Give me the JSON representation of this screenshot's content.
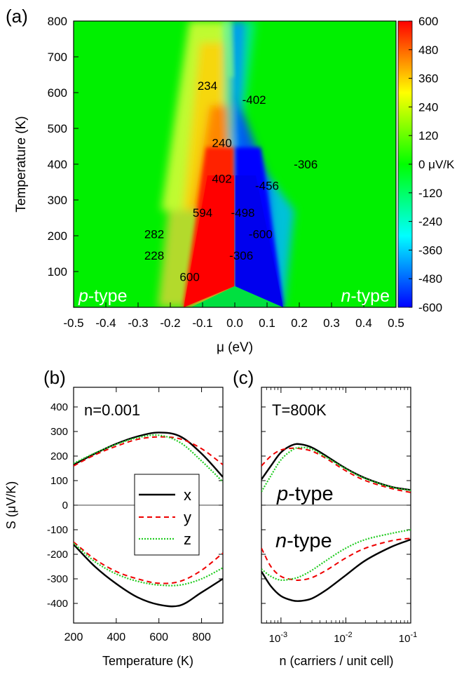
{
  "chart_data": [
    {
      "panel": "(a)",
      "type": "heatmap",
      "xlabel": "μ (eV)",
      "ylabel": "Temperature (K)",
      "xlim": [
        -0.5,
        0.5
      ],
      "ylim": [
        0,
        800
      ],
      "xticks": [
        "-0.5",
        "-0.4",
        "-0.3",
        "-0.2",
        "-0.1",
        "0.0",
        "0.1",
        "0.2",
        "0.3",
        "0.4",
        "0.5"
      ],
      "yticks": [
        "100",
        "200",
        "300",
        "400",
        "500",
        "600",
        "700",
        "800"
      ],
      "colorbar": {
        "min": -600,
        "max": 600,
        "ticks": [
          "600",
          "480",
          "360",
          "240",
          "120",
          "0 μV/K",
          "-120",
          "-240",
          "-360",
          "-480",
          "-600"
        ],
        "colors": [
          "#0000ff",
          "#0080ff",
          "#00ffff",
          "#00ff80",
          "#00ff00",
          "#80ff00",
          "#ffff00",
          "#ff8000",
          "#ff0000"
        ]
      },
      "region_labels": [
        {
          "prefix": "p",
          "suffix": "-type"
        },
        {
          "prefix": "n",
          "suffix": "-type"
        }
      ],
      "annotations": [
        {
          "text": "234",
          "mu": -0.085,
          "T": 620
        },
        {
          "text": "-402",
          "mu": 0.06,
          "T": 580
        },
        {
          "text": "240",
          "mu": -0.04,
          "T": 460
        },
        {
          "text": "402",
          "mu": -0.04,
          "T": 360
        },
        {
          "text": "-306",
          "mu": 0.22,
          "T": 400
        },
        {
          "text": "-456",
          "mu": 0.1,
          "T": 340
        },
        {
          "text": "594",
          "mu": -0.1,
          "T": 265
        },
        {
          "text": "-498",
          "mu": 0.025,
          "T": 265
        },
        {
          "text": "282",
          "mu": -0.25,
          "T": 205
        },
        {
          "text": "-600",
          "mu": 0.08,
          "T": 205
        },
        {
          "text": "228",
          "mu": -0.25,
          "T": 145
        },
        {
          "text": "-306",
          "mu": 0.02,
          "T": 145
        },
        {
          "text": "600",
          "mu": -0.14,
          "T": 85
        }
      ]
    },
    {
      "panel": "(b)",
      "type": "line",
      "annotation": "n=0.001",
      "xlabel": "Temperature (K)",
      "ylabel": "S (μV/K)",
      "xlim": [
        200,
        900
      ],
      "ylim": [
        -480,
        480
      ],
      "xticks": [
        "200",
        "400",
        "600",
        "800"
      ],
      "yticks": [
        "400",
        "300",
        "200",
        "100",
        "0",
        "-100",
        "-200",
        "-300",
        "-400"
      ],
      "x": [
        200,
        300,
        400,
        500,
        600,
        700,
        800,
        900
      ],
      "series": [
        {
          "name": "x",
          "color": "#000000",
          "dash": "",
          "p": [
            165,
            210,
            250,
            280,
            296,
            280,
            210,
            115
          ],
          "n": [
            -160,
            -250,
            -320,
            -375,
            -405,
            -408,
            -355,
            -300
          ]
        },
        {
          "name": "y",
          "color": "#ee0000",
          "dash": "7,5",
          "p": [
            160,
            205,
            240,
            268,
            278,
            270,
            230,
            165
          ],
          "n": [
            -150,
            -220,
            -270,
            -300,
            -318,
            -310,
            -265,
            -195
          ]
        },
        {
          "name": "z",
          "color": "#22cc22",
          "dash": "2,2",
          "p": [
            170,
            212,
            248,
            275,
            285,
            255,
            180,
            95
          ],
          "n": [
            -155,
            -230,
            -280,
            -310,
            -325,
            -325,
            -300,
            -255
          ]
        }
      ]
    },
    {
      "panel": "(c)",
      "type": "line",
      "annotation": "T=800K",
      "region_labels": [
        {
          "prefix": "p",
          "suffix": "-type"
        },
        {
          "prefix": "n",
          "suffix": "-type"
        }
      ],
      "xlabel": "n (carriers / unit cell)",
      "ylabel": "",
      "xscale": "log",
      "xlim": [
        0.0005,
        0.1
      ],
      "ylim": [
        -480,
        480
      ],
      "xticks": [
        {
          "base": "10",
          "exp": "-3"
        },
        {
          "base": "10",
          "exp": "-2"
        },
        {
          "base": "10",
          "exp": "-1"
        }
      ],
      "yticks": [
        "400",
        "300",
        "200",
        "100",
        "0",
        "-100",
        "-200",
        "-300",
        "-400"
      ],
      "x": [
        0.0005,
        0.0007,
        0.001,
        0.0015,
        0.002,
        0.003,
        0.005,
        0.01,
        0.02,
        0.05,
        0.1
      ],
      "series": [
        {
          "name": "x",
          "color": "#000000",
          "dash": "",
          "p": [
            105,
            160,
            215,
            245,
            248,
            235,
            200,
            150,
            110,
            75,
            62
          ],
          "n": [
            -270,
            -330,
            -370,
            -388,
            -390,
            -380,
            -345,
            -285,
            -225,
            -170,
            -140
          ]
        },
        {
          "name": "y",
          "color": "#ee0000",
          "dash": "7,5",
          "p": [
            160,
            200,
            225,
            232,
            230,
            220,
            190,
            140,
            100,
            68,
            52
          ],
          "n": [
            -175,
            -250,
            -290,
            -303,
            -305,
            -295,
            -265,
            -215,
            -175,
            -145,
            -135
          ]
        },
        {
          "name": "z",
          "color": "#22cc22",
          "dash": "2,2",
          "p": [
            55,
            120,
            185,
            225,
            235,
            228,
            195,
            148,
            108,
            74,
            60
          ],
          "n": [
            -260,
            -290,
            -305,
            -300,
            -290,
            -265,
            -225,
            -175,
            -140,
            -115,
            -100
          ]
        }
      ]
    }
  ]
}
